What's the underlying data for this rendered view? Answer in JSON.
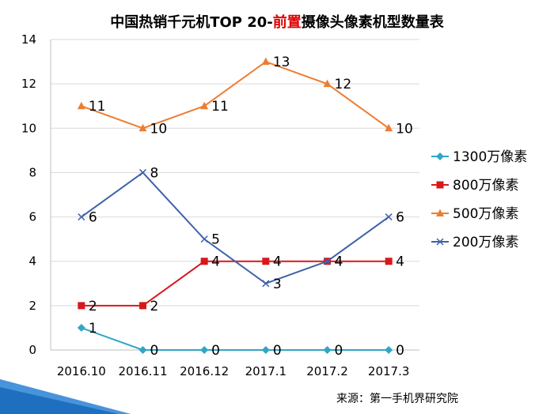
{
  "title": {
    "part1": "中国热销千元机TOP  20-",
    "highlight": "前置",
    "part2": "摄像头像素机型数量表"
  },
  "source": "来源：第一手机界研究院",
  "chart_data": {
    "type": "line",
    "categories": [
      "2016.10",
      "2016.11",
      "2016.12",
      "2017.1",
      "2017.2",
      "2017.3"
    ],
    "ylim": [
      0,
      14
    ],
    "yticks": [
      0,
      2,
      4,
      6,
      8,
      10,
      12,
      14
    ],
    "grid": "horizontal",
    "legend_position": "right",
    "series": [
      {
        "name": "1300万像素",
        "color": "#31A6C3",
        "marker": "diamond",
        "values": [
          1,
          0,
          0,
          0,
          0,
          0
        ]
      },
      {
        "name": "800万像素",
        "color": "#D7191C",
        "marker": "square",
        "values": [
          2,
          2,
          4,
          4,
          4,
          4
        ]
      },
      {
        "name": "500万像素",
        "color": "#ED7D31",
        "marker": "triangle",
        "values": [
          11,
          10,
          11,
          13,
          12,
          10
        ]
      },
      {
        "name": "200万像素",
        "color": "#3E61A8",
        "marker": "x",
        "values": [
          6,
          8,
          5,
          3,
          4,
          6
        ]
      }
    ]
  }
}
